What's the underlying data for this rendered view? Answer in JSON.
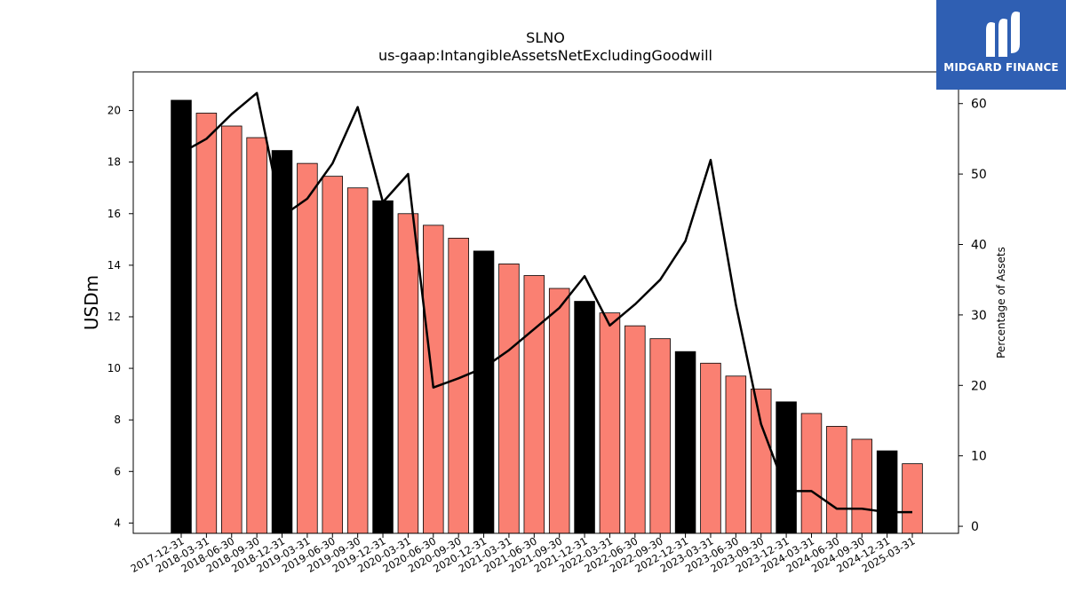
{
  "brand": {
    "name": "MIDGARD FINANCE",
    "bg_color": "#2f5fb3"
  },
  "chart_data": {
    "type": "bar",
    "title": "SLNO",
    "subtitle": "us-gaap:IntangibleAssetsNetExcludingGoodwill",
    "ylabel": "USDm",
    "y2label": "Percentage of Assets",
    "ylim": [
      3.6,
      21.5
    ],
    "y2lim": [
      -1,
      64.5
    ],
    "yticks": [
      4,
      6,
      8,
      10,
      12,
      14,
      16,
      18,
      20
    ],
    "y2ticks": [
      0,
      10,
      20,
      30,
      40,
      50,
      60
    ],
    "grid": false,
    "bar_colors": {
      "annual": "#000000",
      "quarterly": "#fa8072"
    },
    "line_color": "#000000",
    "categories": [
      "2017-12-31",
      "2018-03-31",
      "2018-06-30",
      "2018-09-30",
      "2018-12-31",
      "2019-03-31",
      "2019-06-30",
      "2019-09-30",
      "2019-12-31",
      "2020-03-31",
      "2020-06-30",
      "2020-09-30",
      "2020-12-31",
      "2021-03-31",
      "2021-06-30",
      "2021-09-30",
      "2021-12-31",
      "2022-03-31",
      "2022-06-30",
      "2022-09-30",
      "2022-12-31",
      "2023-03-31",
      "2023-06-30",
      "2023-09-30",
      "2023-12-31",
      "2024-03-31",
      "2024-06-30",
      "2024-09-30",
      "2024-12-31",
      "2025-03-31"
    ],
    "annual_flags": [
      true,
      false,
      false,
      false,
      true,
      false,
      false,
      false,
      true,
      false,
      false,
      false,
      true,
      false,
      false,
      false,
      true,
      false,
      false,
      false,
      true,
      false,
      false,
      false,
      true,
      false,
      false,
      false,
      true,
      false
    ],
    "series": [
      {
        "axis": "left",
        "kind": "bar",
        "values": [
          20.4,
          19.9,
          19.4,
          18.95,
          18.45,
          17.95,
          17.45,
          17.0,
          16.5,
          16.0,
          15.55,
          15.05,
          14.55,
          14.05,
          13.6,
          13.1,
          12.6,
          12.15,
          11.65,
          11.15,
          10.65,
          10.2,
          9.7,
          9.2,
          8.7,
          8.25,
          7.75,
          7.25,
          6.8,
          6.3
        ]
      },
      {
        "axis": "right",
        "kind": "line",
        "values": [
          53.0,
          55.0,
          58.5,
          61.5,
          44.0,
          46.5,
          51.5,
          59.5,
          46.0,
          50.0,
          19.7,
          21.0,
          22.5,
          25.0,
          28.0,
          31.0,
          35.5,
          28.5,
          31.5,
          35.0,
          40.5,
          52.0,
          31.5,
          14.5,
          5.0,
          5.0,
          2.5,
          2.5,
          2.0,
          2.0
        ]
      }
    ]
  }
}
